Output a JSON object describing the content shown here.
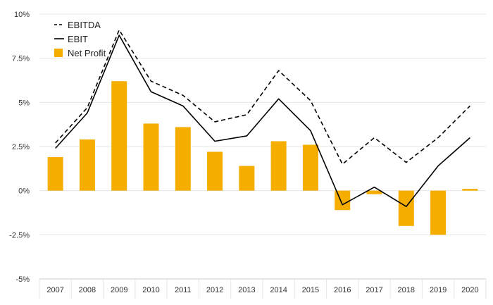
{
  "chart_data": {
    "type": "bar",
    "categories": [
      "2007",
      "2008",
      "2009",
      "2010",
      "2011",
      "2012",
      "2013",
      "2014",
      "2015",
      "2016",
      "2017",
      "2018",
      "2019",
      "2020"
    ],
    "series": [
      {
        "name": "EBITDA",
        "type": "line",
        "style": "dashed",
        "color": "#000000",
        "values": [
          2.7,
          4.7,
          9.1,
          6.2,
          5.4,
          3.9,
          4.3,
          6.8,
          5.1,
          1.5,
          3.0,
          1.6,
          3.0,
          4.8
        ]
      },
      {
        "name": "EBIT",
        "type": "line",
        "style": "solid",
        "color": "#000000",
        "values": [
          2.4,
          4.4,
          8.8,
          5.6,
          4.8,
          2.8,
          3.1,
          5.2,
          3.4,
          -0.8,
          0.2,
          -0.9,
          1.4,
          3.0
        ]
      },
      {
        "name": "Net Profit",
        "type": "bar",
        "color": "#f5ad00",
        "values": [
          1.9,
          2.9,
          6.2,
          3.8,
          3.6,
          2.2,
          1.4,
          2.8,
          2.6,
          -1.1,
          -0.2,
          -2.0,
          -2.5,
          0.1
        ]
      }
    ],
    "y_ticks": [
      "10%",
      "7.5%",
      "5%",
      "2.5%",
      "0%",
      "-2.5%",
      "-5%"
    ],
    "ylim": [
      -5,
      10
    ],
    "y_step": 2.5,
    "grid": true,
    "legend": {
      "position": "top-left"
    },
    "title": "",
    "xlabel": "",
    "ylabel": ""
  }
}
